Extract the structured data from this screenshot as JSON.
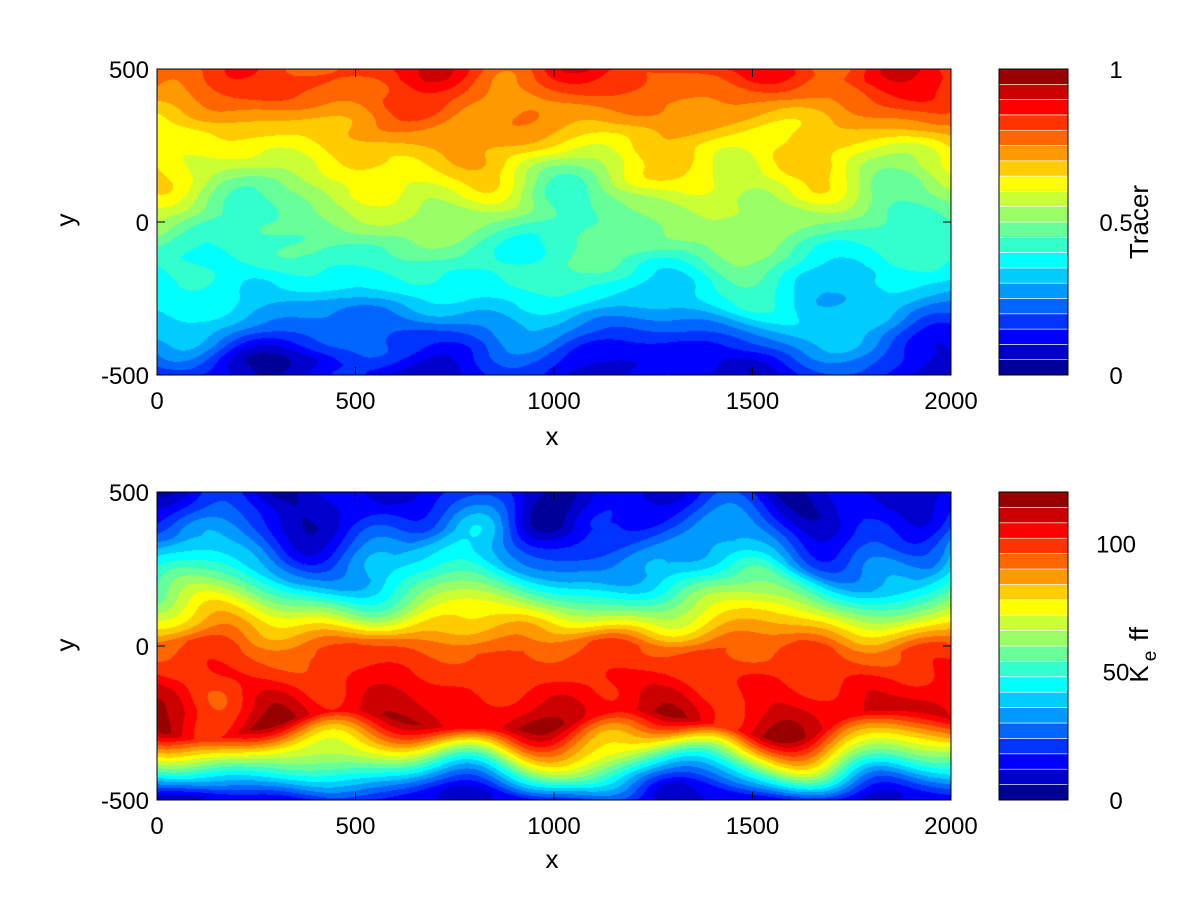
{
  "chart_data": [
    {
      "type": "heatmap",
      "title": "",
      "xlabel": "x",
      "ylabel": "y",
      "xlim": [
        0,
        2000
      ],
      "ylim": [
        -500,
        500
      ],
      "xticks": [
        "0",
        "500",
        "1000",
        "1500",
        "2000"
      ],
      "yticks": [
        "-500",
        "0",
        "500"
      ],
      "colorbar": {
        "label": "Tracer",
        "ticks": [
          "0",
          "0.5",
          "1"
        ],
        "range": [
          0,
          1
        ],
        "levels": 20,
        "colormap": "jet"
      },
      "field_description_values": {
        "north_boundary": 0.85,
        "upper_band": 0.65,
        "middle_band": 0.5,
        "lower_band": 0.35,
        "south_boundary": 0.1
      }
    },
    {
      "type": "heatmap",
      "title": "",
      "xlabel": "x",
      "ylabel": "y",
      "xlim": [
        0,
        2000
      ],
      "ylim": [
        -500,
        500
      ],
      "xticks": [
        "0",
        "500",
        "1000",
        "1500",
        "2000"
      ],
      "yticks": [
        "-500",
        "0",
        "500"
      ],
      "colorbar": {
        "label_main": "K",
        "label_sub": "e",
        "label_rest": "ff",
        "ticks": [
          "0",
          "50",
          "100"
        ],
        "tick_values": [
          0,
          50,
          100
        ],
        "range": [
          0,
          120
        ],
        "levels": 20,
        "colormap": "jet"
      },
      "field_description_values": {
        "north_boundary": 10,
        "upper_band": 35,
        "middle_band": 95,
        "lower_band": 110,
        "south_boundary": 12
      }
    }
  ]
}
